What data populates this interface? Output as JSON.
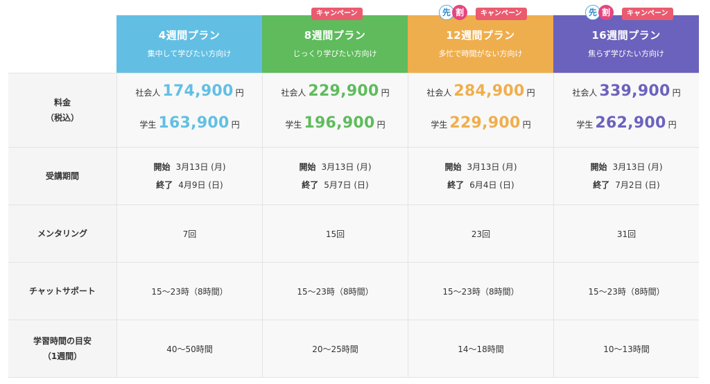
{
  "colors": {
    "blue": "#62bfe3",
    "green": "#5fbb5c",
    "orange": "#efae4d",
    "purple": "#6b62bd",
    "campaign_badge": "#ea5b6f"
  },
  "plans": [
    {
      "name": "4週間プラン",
      "subtitle": "集中して学びたい方向け",
      "worker_price": "174,900",
      "student_price": "163,900",
      "start": "3月13日 (月)",
      "end": "4月9日 (日)",
      "mentoring": "7回",
      "chat": "15〜23時（8時間）",
      "study": "40〜50時間"
    },
    {
      "name": "8週間プラン",
      "subtitle": "じっくり学びたい方向け",
      "badge_campaign": "キャンペーン",
      "worker_price": "229,900",
      "student_price": "196,900",
      "start": "3月13日 (月)",
      "end": "5月7日 (日)",
      "mentoring": "15回",
      "chat": "15〜23時（8時間）",
      "study": "20〜25時間"
    },
    {
      "name": "12週間プラン",
      "subtitle": "多忙で時間がない方向け",
      "badge_campaign": "キャンペーン",
      "badge_s1": "先",
      "badge_s2": "割",
      "worker_price": "284,900",
      "student_price": "229,900",
      "start": "3月13日 (月)",
      "end": "6月4日 (日)",
      "mentoring": "23回",
      "chat": "15〜23時（8時間）",
      "study": "14〜18時間"
    },
    {
      "name": "16週間プラン",
      "subtitle": "焦らず学びたい方向け",
      "badge_campaign": "キャンペーン",
      "badge_s1": "先",
      "badge_s2": "割",
      "worker_price": "339,900",
      "student_price": "262,900",
      "start": "3月13日 (月)",
      "end": "7月2日 (日)",
      "mentoring": "31回",
      "chat": "15〜23時（8時間）",
      "study": "10〜13時間"
    }
  ],
  "labels": {
    "fee": "料金",
    "fee_tax": "（税込）",
    "period": "受講期間",
    "mentoring": "メンタリング",
    "chat": "チャットサポート",
    "study": "学習時間の目安",
    "study_sub": "（1週間）",
    "worker": "社会人",
    "student": "学生",
    "yen": "円",
    "start": "開始",
    "end": "終了"
  }
}
